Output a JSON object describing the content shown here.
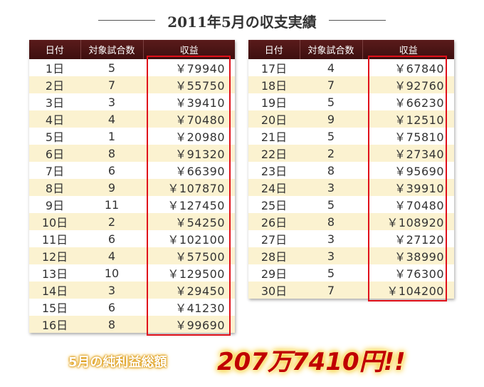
{
  "title": "2011年5月の収支実績",
  "headers": {
    "date": "日付",
    "games": "対象試合数",
    "profit": "収益"
  },
  "left_rows": [
    {
      "date": "1日",
      "games": "5",
      "profit": "￥79940"
    },
    {
      "date": "2日",
      "games": "7",
      "profit": "￥55750"
    },
    {
      "date": "3日",
      "games": "3",
      "profit": "￥39410"
    },
    {
      "date": "4日",
      "games": "4",
      "profit": "￥70480"
    },
    {
      "date": "5日",
      "games": "1",
      "profit": "￥20980"
    },
    {
      "date": "6日",
      "games": "8",
      "profit": "￥91320"
    },
    {
      "date": "7日",
      "games": "6",
      "profit": "￥66390"
    },
    {
      "date": "8日",
      "games": "9",
      "profit": "￥107870"
    },
    {
      "date": "9日",
      "games": "11",
      "profit": "￥127450"
    },
    {
      "date": "10日",
      "games": "2",
      "profit": "￥54250"
    },
    {
      "date": "11日",
      "games": "6",
      "profit": "￥102100"
    },
    {
      "date": "12日",
      "games": "4",
      "profit": "￥57500"
    },
    {
      "date": "13日",
      "games": "10",
      "profit": "￥129500"
    },
    {
      "date": "14日",
      "games": "3",
      "profit": "￥29450"
    },
    {
      "date": "15日",
      "games": "6",
      "profit": "￥41230"
    },
    {
      "date": "16日",
      "games": "8",
      "profit": "￥99690"
    }
  ],
  "right_rows": [
    {
      "date": "17日",
      "games": "4",
      "profit": "￥67840"
    },
    {
      "date": "18日",
      "games": "7",
      "profit": "￥92760"
    },
    {
      "date": "19日",
      "games": "5",
      "profit": "￥66230"
    },
    {
      "date": "20日",
      "games": "9",
      "profit": "￥12510"
    },
    {
      "date": "21日",
      "games": "5",
      "profit": "￥75810"
    },
    {
      "date": "22日",
      "games": "2",
      "profit": "￥27340"
    },
    {
      "date": "23日",
      "games": "8",
      "profit": "￥95690"
    },
    {
      "date": "24日",
      "games": "3",
      "profit": "￥39910"
    },
    {
      "date": "25日",
      "games": "5",
      "profit": "￥70480"
    },
    {
      "date": "26日",
      "games": "8",
      "profit": "￥108920"
    },
    {
      "date": "27日",
      "games": "3",
      "profit": "￥27120"
    },
    {
      "date": "28日",
      "games": "3",
      "profit": "￥38990"
    },
    {
      "date": "29日",
      "games": "5",
      "profit": "￥76300"
    },
    {
      "date": "30日",
      "games": "7",
      "profit": "￥104200"
    }
  ],
  "summary": {
    "label": "5月の純利益総額",
    "amount": "207万7410円!!"
  },
  "colors": {
    "header_bg": "#4a1515",
    "stripe": "#fbf2d0",
    "highlight_border": "#e0101a",
    "amount": "#c00000"
  }
}
